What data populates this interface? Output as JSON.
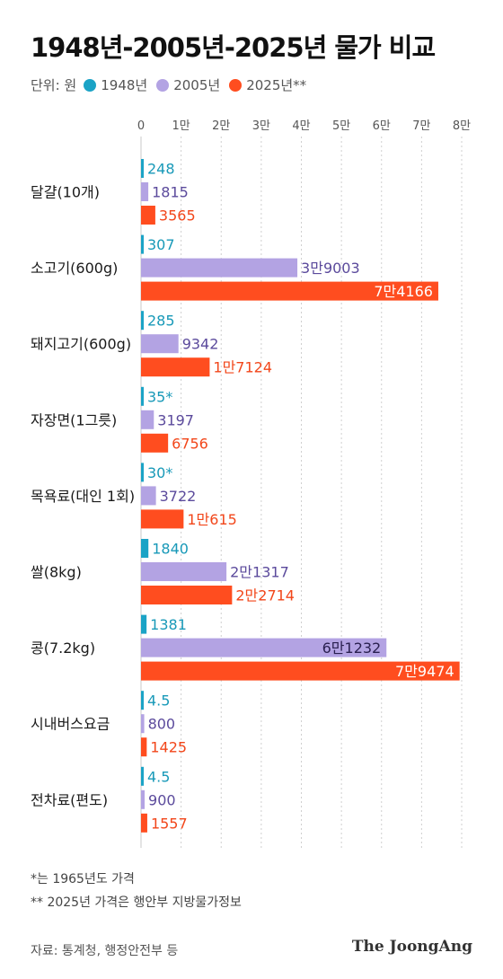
{
  "title": "1948년-2005년-2025년 물가 비교",
  "legend": {
    "unit": "단위: 원",
    "items": [
      {
        "label": "1948년",
        "color": "#1ba3c6"
      },
      {
        "label": "2005년",
        "color": "#b3a3e3"
      },
      {
        "label": "2025년**",
        "color": "#ff4d1f"
      }
    ]
  },
  "notes": {
    "note1": "*는 1965년도 가격",
    "note2": "** 2025년 가격은 행안부 지방물가정보"
  },
  "source": "자료: 통계청, 행정안전부 등",
  "logo": "The JoongAng",
  "chart_data": {
    "type": "bar",
    "orientation": "horizontal",
    "title": "1948년-2005년-2025년 물가 비교",
    "xlim": [
      0,
      80000
    ],
    "ticks": [
      0,
      10000,
      20000,
      30000,
      40000,
      50000,
      60000,
      70000,
      80000
    ],
    "tick_labels": [
      "0",
      "1만",
      "2만",
      "3만",
      "4만",
      "5만",
      "6만",
      "7만",
      "8만"
    ],
    "grid": "vertical dashed",
    "legend_position": "top-left",
    "categories": [
      "달걀(10개)",
      "소고기(600g)",
      "돼지고기(600g)",
      "자장면(1그릇)",
      "목욕료(대인 1회)",
      "쌀(8kg)",
      "콩(7.2kg)",
      "시내버스요금",
      "전차료(편도)"
    ],
    "series": [
      {
        "name": "1948년",
        "color": "#1ba3c6",
        "label_color": "#1899b8",
        "values": [
          248,
          307,
          285,
          35,
          30,
          1840,
          1381,
          4.5,
          4.5
        ],
        "labels": [
          "248",
          "307",
          "285",
          "35*",
          "30*",
          "1840",
          "1381",
          "4.5",
          "4.5"
        ]
      },
      {
        "name": "2005년",
        "color": "#b3a3e3",
        "label_color": "#5b4a9c",
        "values": [
          1815,
          39003,
          9342,
          3197,
          3722,
          21317,
          61232,
          800,
          900
        ],
        "labels": [
          "1815",
          "3만9003",
          "9342",
          "3197",
          "3722",
          "2만1317",
          "6만1232",
          "800",
          "900"
        ]
      },
      {
        "name": "2025년**",
        "color": "#ff4d1f",
        "label_color": "#f2461a",
        "values": [
          3565,
          74166,
          17124,
          6756,
          10615,
          22714,
          79474,
          1425,
          1557
        ],
        "labels": [
          "3565",
          "7만4166",
          "1만7124",
          "6756",
          "1만615",
          "2만2714",
          "7만9474",
          "1425",
          "1557"
        ]
      }
    ]
  }
}
